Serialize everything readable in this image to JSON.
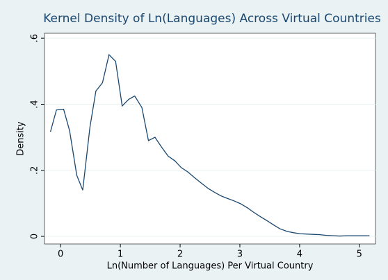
{
  "chart_data": {
    "type": "line",
    "title": "Kernel Density of Ln(Languages) Across Virtual Countries",
    "x_label": "Ln(Number of Languages) Per Virtual Country",
    "y_label": "Density",
    "x": [
      -0.17,
      -0.07,
      0.05,
      0.15,
      0.27,
      0.37,
      0.49,
      0.59,
      0.7,
      0.81,
      0.92,
      1.03,
      1.14,
      1.24,
      1.36,
      1.47,
      1.58,
      1.69,
      1.8,
      1.91,
      2.02,
      2.13,
      2.24,
      2.35,
      2.47,
      2.57,
      2.69,
      2.79,
      2.91,
      3.01,
      3.13,
      3.23,
      3.35,
      3.45,
      3.57,
      3.67,
      3.79,
      3.9,
      4.01,
      4.12,
      4.23,
      4.34,
      4.45,
      4.57,
      4.67,
      4.79,
      4.9,
      5.01,
      5.17
    ],
    "series": [
      {
        "color": "#1a476f",
        "values": [
          0.317,
          0.383,
          0.385,
          0.32,
          0.185,
          0.14,
          0.33,
          0.44,
          0.465,
          0.55,
          0.53,
          0.395,
          0.415,
          0.425,
          0.39,
          0.29,
          0.3,
          0.27,
          0.243,
          0.229,
          0.208,
          0.195,
          0.178,
          0.162,
          0.145,
          0.134,
          0.122,
          0.115,
          0.107,
          0.099,
          0.086,
          0.073,
          0.059,
          0.048,
          0.034,
          0.023,
          0.015,
          0.011,
          0.008,
          0.007,
          0.006,
          0.005,
          0.003,
          0.002,
          0.001,
          0.002,
          0.002,
          0.002,
          0.002
        ]
      }
    ],
    "xlim": [
      -0.27,
      5.27
    ],
    "ylim": [
      -0.023,
      0.615
    ],
    "xticks": [
      0,
      1,
      2,
      3,
      4,
      5
    ],
    "yticks": [
      0,
      {
        "value": 0.2,
        "label": ".2"
      },
      {
        "value": 0.4,
        "label": ".4"
      },
      {
        "value": 0.6,
        "label": ".6"
      }
    ],
    "grid": true
  }
}
